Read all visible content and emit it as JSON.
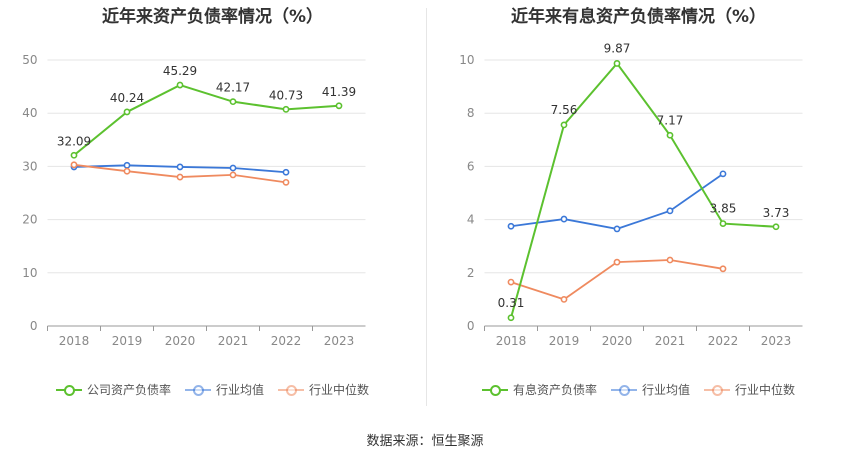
{
  "source_text": "数据来源：恒生聚源",
  "colors": {
    "company": "#5cc12f",
    "industry_avg": "#3b78d8",
    "industry_median": "#ef8a5f",
    "grid": "#e5e5e5",
    "axis": "#999999"
  },
  "chart_data": [
    {
      "type": "line",
      "title": "近年来资产负债率情况（%）",
      "x": [
        "2018",
        "2019",
        "2020",
        "2021",
        "2022",
        "2023"
      ],
      "ylim": [
        0,
        50
      ],
      "yticks": [
        0,
        10,
        20,
        30,
        40,
        50
      ],
      "grid": true,
      "legend_position": "bottom",
      "series": [
        {
          "name": "公司资产负债率",
          "color_key": "company",
          "values": [
            32.09,
            40.24,
            45.29,
            42.17,
            40.73,
            41.39
          ],
          "labels": [
            "32.09",
            "40.24",
            "45.29",
            "42.17",
            "40.73",
            "41.39"
          ]
        },
        {
          "name": "行业均值",
          "color_key": "industry_avg",
          "values": [
            29.9,
            30.2,
            29.9,
            29.7,
            28.9,
            null
          ],
          "labels": []
        },
        {
          "name": "行业中位数",
          "color_key": "industry_median",
          "values": [
            30.3,
            29.1,
            28.0,
            28.4,
            27.0,
            null
          ],
          "labels": []
        }
      ]
    },
    {
      "type": "line",
      "title": "近年来有息资产负债率情况（%）",
      "x": [
        "2018",
        "2019",
        "2020",
        "2021",
        "2022",
        "2023"
      ],
      "ylim": [
        0,
        10
      ],
      "yticks": [
        0,
        2,
        4,
        6,
        8,
        10
      ],
      "grid": true,
      "legend_position": "bottom",
      "series": [
        {
          "name": "有息资产负债率",
          "color_key": "company",
          "values": [
            0.31,
            7.56,
            9.87,
            7.17,
            3.85,
            3.73
          ],
          "labels": [
            "0.31",
            "7.56",
            "9.87",
            "7.17",
            "3.85",
            "3.73"
          ]
        },
        {
          "name": "行业均值",
          "color_key": "industry_avg",
          "values": [
            3.75,
            4.02,
            3.65,
            4.33,
            5.72,
            null
          ],
          "labels": []
        },
        {
          "name": "行业中位数",
          "color_key": "industry_median",
          "values": [
            1.65,
            1.0,
            2.4,
            2.48,
            2.15,
            null
          ],
          "labels": []
        }
      ]
    }
  ]
}
